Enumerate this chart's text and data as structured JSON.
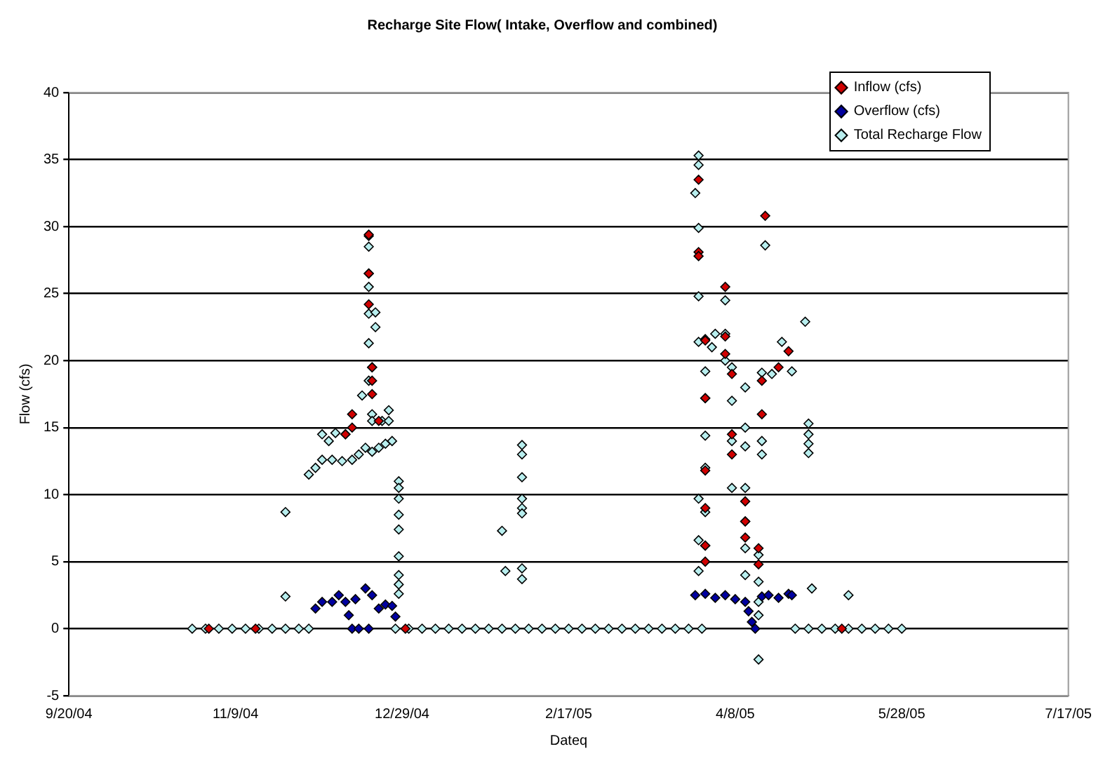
{
  "chart_data": {
    "type": "scatter",
    "title": "Recharge Site Flow( Intake, Overflow and combined)",
    "xlabel": "Dateq",
    "ylabel": "Flow (cfs)",
    "xlim": [
      "2004-09-20",
      "2005-07-17"
    ],
    "xticks": [
      {
        "value": "2004-09-20",
        "label": "9/20/04"
      },
      {
        "value": "2004-11-09",
        "label": "11/9/04"
      },
      {
        "value": "2004-12-29",
        "label": "12/29/04"
      },
      {
        "value": "2005-02-17",
        "label": "2/17/05"
      },
      {
        "value": "2005-04-08",
        "label": "4/8/05"
      },
      {
        "value": "2005-05-28",
        "label": "5/28/05"
      },
      {
        "value": "2005-07-17",
        "label": "7/17/05"
      }
    ],
    "ylim": [
      -5,
      40
    ],
    "yticks": [
      -5,
      0,
      5,
      10,
      15,
      20,
      25,
      30,
      35,
      40
    ],
    "grid": "y",
    "legend": "top right",
    "marker": "diamond",
    "series": [
      {
        "name": "Inflow (cfs)",
        "color": "#d00000",
        "x": [
          "2004-11-01",
          "2004-11-15",
          "2004-12-12",
          "2004-12-14",
          "2004-12-14",
          "2004-12-19",
          "2004-12-19",
          "2004-12-19",
          "2004-12-20",
          "2004-12-20",
          "2004-12-20",
          "2004-12-22",
          "2004-12-30",
          "2005-03-28",
          "2005-03-28",
          "2005-03-28",
          "2005-03-30",
          "2005-03-30",
          "2005-03-30",
          "2005-03-30",
          "2005-03-30",
          "2005-03-30",
          "2005-04-05",
          "2005-04-05",
          "2005-04-05",
          "2005-04-07",
          "2005-04-07",
          "2005-04-07",
          "2005-04-11",
          "2005-04-11",
          "2005-04-11",
          "2005-04-15",
          "2005-04-15",
          "2005-04-16",
          "2005-04-16",
          "2005-04-17",
          "2005-04-21",
          "2005-04-24",
          "2005-05-10"
        ],
        "values": [
          0,
          0,
          14.5,
          16,
          15,
          29.4,
          26.5,
          24.2,
          19.5,
          18.5,
          17.5,
          15.5,
          0,
          33.5,
          28.1,
          27.8,
          21.5,
          17.2,
          11.8,
          9,
          6.2,
          5,
          25.5,
          21.8,
          20.5,
          19,
          14.5,
          13,
          9.5,
          8,
          6.8,
          6,
          4.8,
          18.5,
          16,
          30.8,
          19.5,
          20.7,
          0
        ]
      },
      {
        "name": "Overflow (cfs)",
        "color": "#0000a0",
        "x": [
          "2004-12-03",
          "2004-12-05",
          "2004-12-08",
          "2004-12-10",
          "2004-12-12",
          "2004-12-13",
          "2004-12-14",
          "2004-12-15",
          "2004-12-16",
          "2004-12-18",
          "2004-12-19",
          "2004-12-20",
          "2004-12-22",
          "2004-12-24",
          "2004-12-26",
          "2004-12-27",
          "2005-03-27",
          "2005-03-30",
          "2005-04-02",
          "2005-04-05",
          "2005-04-08",
          "2005-04-11",
          "2005-04-12",
          "2005-04-13",
          "2005-04-14",
          "2005-04-16",
          "2005-04-18",
          "2005-04-21",
          "2005-04-24",
          "2005-04-25"
        ],
        "values": [
          1.5,
          2,
          2,
          2.5,
          2,
          1,
          0,
          2.2,
          0,
          3,
          0,
          2.5,
          1.5,
          1.8,
          1.7,
          0.9,
          2.5,
          2.6,
          2.3,
          2.5,
          2.2,
          2,
          1.3,
          0.5,
          0,
          2.4,
          2.5,
          2.3,
          2.6,
          2.5
        ]
      },
      {
        "name": "Total Recharge Flow",
        "color": "#b8eeee",
        "x": [
          "2004-10-27",
          "2004-10-31",
          "2004-11-04",
          "2004-11-08",
          "2004-11-12",
          "2004-11-16",
          "2004-11-20",
          "2004-11-24",
          "2004-11-28",
          "2004-12-01",
          "2004-11-24",
          "2004-11-24",
          "2004-12-01",
          "2004-12-03",
          "2004-12-05",
          "2004-12-08",
          "2004-12-11",
          "2004-12-14",
          "2004-12-16",
          "2004-12-18",
          "2004-12-20",
          "2004-12-22",
          "2004-12-24",
          "2004-12-26",
          "2004-12-05",
          "2004-12-07",
          "2004-12-09",
          "2004-12-12",
          "2004-12-17",
          "2004-12-19",
          "2004-12-19",
          "2004-12-19",
          "2004-12-19",
          "2004-12-19",
          "2004-12-19",
          "2004-12-19",
          "2004-12-20",
          "2004-12-20",
          "2004-12-20",
          "2004-12-21",
          "2004-12-21",
          "2004-12-23",
          "2004-12-25",
          "2004-12-25",
          "2004-12-28",
          "2004-12-28",
          "2004-12-28",
          "2004-12-28",
          "2004-12-28",
          "2004-12-28",
          "2004-12-28",
          "2004-12-28",
          "2004-12-28",
          "2004-12-27",
          "2004-12-31",
          "2005-01-04",
          "2005-01-08",
          "2005-01-12",
          "2005-01-16",
          "2005-01-20",
          "2005-01-24",
          "2005-01-28",
          "2005-02-01",
          "2005-02-05",
          "2005-02-09",
          "2005-02-13",
          "2005-02-17",
          "2005-02-21",
          "2005-02-25",
          "2005-03-01",
          "2005-03-05",
          "2005-03-09",
          "2005-03-13",
          "2005-03-17",
          "2005-03-21",
          "2005-03-25",
          "2005-03-29",
          "2005-01-28",
          "2005-01-29",
          "2005-02-03",
          "2005-02-03",
          "2005-02-03",
          "2005-02-03",
          "2005-02-03",
          "2005-02-03",
          "2005-02-03",
          "2005-02-03",
          "2005-03-28",
          "2005-03-28",
          "2005-03-27",
          "2005-03-28",
          "2005-03-28",
          "2005-03-28",
          "2005-03-28",
          "2005-03-28",
          "2005-03-28",
          "2005-03-30",
          "2005-03-30",
          "2005-03-30",
          "2005-03-30",
          "2005-03-30",
          "2005-03-30",
          "2005-03-30",
          "2005-04-01",
          "2005-04-02",
          "2005-04-05",
          "2005-04-05",
          "2005-04-05",
          "2005-04-07",
          "2005-04-07",
          "2005-04-07",
          "2005-04-07",
          "2005-04-11",
          "2005-04-11",
          "2005-04-11",
          "2005-04-11",
          "2005-04-11",
          "2005-04-11",
          "2005-04-11",
          "2005-04-15",
          "2005-04-15",
          "2005-04-15",
          "2005-04-15",
          "2005-04-15",
          "2005-04-16",
          "2005-04-16",
          "2005-04-16",
          "2005-04-17",
          "2005-04-19",
          "2005-04-22",
          "2005-04-25",
          "2005-04-29",
          "2005-04-30",
          "2005-04-30",
          "2005-04-30",
          "2005-04-30",
          "2005-05-01",
          "2005-05-12",
          "2005-04-26",
          "2005-04-30",
          "2005-05-04",
          "2005-05-08",
          "2005-05-12",
          "2005-05-16",
          "2005-05-20",
          "2005-05-24",
          "2005-05-28"
        ],
        "values": [
          0,
          0,
          0,
          0,
          0,
          0,
          0,
          8.7,
          0,
          0,
          2.4,
          0,
          11.5,
          12,
          12.6,
          12.6,
          12.5,
          12.6,
          13,
          13.5,
          13.2,
          13.5,
          13.8,
          14,
          14.5,
          14,
          14.6,
          14.5,
          17.4,
          29.3,
          28.5,
          26.5,
          25.5,
          23.5,
          21.3,
          18.5,
          19.5,
          16,
          15.5,
          23.6,
          22.5,
          15.5,
          15.5,
          16.3,
          11,
          10.5,
          9.7,
          8.5,
          7.4,
          5.4,
          4,
          3.3,
          2.6,
          0,
          0,
          0,
          0,
          0,
          0,
          0,
          0,
          0,
          0,
          0,
          0,
          0,
          0,
          0,
          0,
          0,
          0,
          0,
          0,
          0,
          0,
          0,
          0,
          7.3,
          4.3,
          13.7,
          13,
          11.3,
          9.7,
          9,
          8.6,
          4.5,
          3.7,
          35.3,
          34.6,
          32.5,
          29.9,
          24.8,
          21.4,
          9.7,
          6.6,
          4.3,
          21.6,
          19.2,
          17.2,
          14.4,
          12,
          8.7,
          6.2,
          21,
          22,
          24.5,
          22,
          20,
          19.5,
          17,
          14,
          10.5,
          18,
          15,
          13.6,
          10.5,
          8,
          6,
          4,
          5.5,
          3.5,
          2,
          1,
          -2.3,
          19.1,
          14,
          13,
          28.6,
          19,
          21.4,
          19.2,
          22.9,
          15.3,
          14.5,
          13.8,
          13.1,
          3,
          2.5,
          0,
          0,
          0,
          0,
          0,
          0,
          0,
          0,
          0
        ]
      }
    ]
  }
}
